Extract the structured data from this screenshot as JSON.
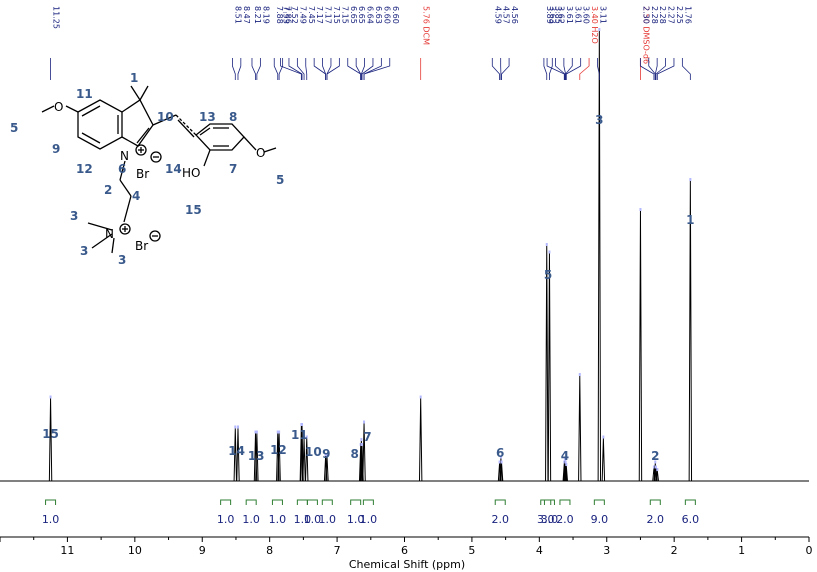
{
  "chart_data": {
    "type": "line",
    "title": "",
    "xlabel": "Chemical Shift (ppm)",
    "ylabel": "",
    "xlim": [
      12,
      0
    ],
    "ylim": [
      0,
      1
    ],
    "x_ticks": [
      "11",
      "10",
      "9",
      "8",
      "7",
      "6",
      "5",
      "4",
      "3",
      "2",
      "1",
      "0"
    ],
    "grid": false,
    "spectrum_peaks": [
      {
        "ppm": 11.25,
        "height": 0.33
      },
      {
        "ppm": 8.51,
        "height": 0.21
      },
      {
        "ppm": 8.47,
        "height": 0.21
      },
      {
        "ppm": 8.21,
        "height": 0.19
      },
      {
        "ppm": 8.19,
        "height": 0.19
      },
      {
        "ppm": 7.88,
        "height": 0.19
      },
      {
        "ppm": 7.86,
        "height": 0.19
      },
      {
        "ppm": 7.53,
        "height": 0.22
      },
      {
        "ppm": 7.52,
        "height": 0.22
      },
      {
        "ppm": 7.49,
        "height": 0.17
      },
      {
        "ppm": 7.45,
        "height": 0.17
      },
      {
        "ppm": 7.17,
        "height": 0.1
      },
      {
        "ppm": 7.15,
        "height": 0.1
      },
      {
        "ppm": 6.65,
        "height": 0.14
      },
      {
        "ppm": 6.64,
        "height": 0.16
      },
      {
        "ppm": 6.63,
        "height": 0.14
      },
      {
        "ppm": 6.6,
        "height": 0.23
      },
      {
        "ppm": 5.76,
        "height": 0.33
      },
      {
        "ppm": 4.59,
        "height": 0.07
      },
      {
        "ppm": 4.57,
        "height": 0.09
      },
      {
        "ppm": 4.56,
        "height": 0.07
      },
      {
        "ppm": 3.89,
        "height": 0.94
      },
      {
        "ppm": 3.85,
        "height": 0.91
      },
      {
        "ppm": 3.63,
        "height": 0.07
      },
      {
        "ppm": 3.62,
        "height": 0.08
      },
      {
        "ppm": 3.61,
        "height": 0.07
      },
      {
        "ppm": 3.6,
        "height": 0.06
      },
      {
        "ppm": 3.4,
        "height": 0.42
      },
      {
        "ppm": 3.11,
        "height": 1.8
      },
      {
        "ppm": 3.05,
        "height": 0.17
      },
      {
        "ppm": 2.5,
        "height": 1.08
      },
      {
        "ppm": 2.3,
        "height": 0.05
      },
      {
        "ppm": 2.28,
        "height": 0.07
      },
      {
        "ppm": 2.27,
        "height": 0.05
      },
      {
        "ppm": 2.25,
        "height": 0.04
      },
      {
        "ppm": 1.76,
        "height": 1.2
      }
    ],
    "peak_labels": [
      {
        "text": "11.25",
        "ppm": 11.25,
        "color": "#1a237e"
      },
      {
        "text": "8.51",
        "ppm": 8.51,
        "color": "#1a237e"
      },
      {
        "text": "8.47",
        "ppm": 8.47,
        "color": "#1a237e"
      },
      {
        "text": "8.21",
        "ppm": 8.21,
        "color": "#1a237e"
      },
      {
        "text": "8.19",
        "ppm": 8.19,
        "color": "#1a237e"
      },
      {
        "text": "7.88",
        "ppm": 7.88,
        "color": "#1a237e"
      },
      {
        "text": "7.86",
        "ppm": 7.86,
        "color": "#1a237e"
      },
      {
        "text": "7.53",
        "ppm": 7.53,
        "color": "#1a237e"
      },
      {
        "text": "7.52",
        "ppm": 7.52,
        "color": "#1a237e"
      },
      {
        "text": "7.49",
        "ppm": 7.49,
        "color": "#1a237e"
      },
      {
        "text": "7.45",
        "ppm": 7.45,
        "color": "#1a237e"
      },
      {
        "text": "7.17",
        "ppm": 7.17,
        "color": "#1a237e"
      },
      {
        "text": "7.17",
        "ppm": 7.17,
        "color": "#1a237e"
      },
      {
        "text": "7.15",
        "ppm": 7.15,
        "color": "#1a237e"
      },
      {
        "text": "7.15",
        "ppm": 7.15,
        "color": "#1a237e"
      },
      {
        "text": "6.65",
        "ppm": 6.65,
        "color": "#1a237e"
      },
      {
        "text": "6.65",
        "ppm": 6.65,
        "color": "#1a237e"
      },
      {
        "text": "6.64",
        "ppm": 6.64,
        "color": "#1a237e"
      },
      {
        "text": "6.63",
        "ppm": 6.63,
        "color": "#1a237e"
      },
      {
        "text": "6.60",
        "ppm": 6.6,
        "color": "#1a237e"
      },
      {
        "text": "6.60",
        "ppm": 6.6,
        "color": "#1a237e"
      },
      {
        "text": "5.76 DCM",
        "ppm": 5.76,
        "color": "#e53935"
      },
      {
        "text": "4.59",
        "ppm": 4.59,
        "color": "#1a237e"
      },
      {
        "text": "4.57",
        "ppm": 4.57,
        "color": "#1a237e"
      },
      {
        "text": "4.56",
        "ppm": 4.56,
        "color": "#1a237e"
      },
      {
        "text": "3.89",
        "ppm": 3.89,
        "color": "#1a237e"
      },
      {
        "text": "3.85",
        "ppm": 3.85,
        "color": "#1a237e"
      },
      {
        "text": "3.63",
        "ppm": 3.63,
        "color": "#1a237e"
      },
      {
        "text": "3.62",
        "ppm": 3.62,
        "color": "#1a237e"
      },
      {
        "text": "3.61",
        "ppm": 3.61,
        "color": "#1a237e"
      },
      {
        "text": "3.61",
        "ppm": 3.61,
        "color": "#1a237e"
      },
      {
        "text": "3.60",
        "ppm": 3.6,
        "color": "#1a237e"
      },
      {
        "text": "3.40 H2O",
        "ppm": 3.4,
        "color": "#e53935"
      },
      {
        "text": "3.11",
        "ppm": 3.11,
        "color": "#1a237e"
      },
      {
        "text": "2.50 DMSO-d6",
        "ppm": 2.5,
        "color": "#e53935"
      },
      {
        "text": "2.30",
        "ppm": 2.3,
        "color": "#1a237e"
      },
      {
        "text": "2.28",
        "ppm": 2.28,
        "color": "#1a237e"
      },
      {
        "text": "2.28",
        "ppm": 2.28,
        "color": "#1a237e"
      },
      {
        "text": "2.27",
        "ppm": 2.27,
        "color": "#1a237e"
      },
      {
        "text": "2.25",
        "ppm": 2.25,
        "color": "#1a237e"
      },
      {
        "text": "1.76",
        "ppm": 1.76,
        "color": "#1a237e"
      }
    ],
    "assignments": [
      {
        "label": "15",
        "ppm": 11.25
      },
      {
        "label": "14",
        "ppm": 8.49
      },
      {
        "label": "13",
        "ppm": 8.2
      },
      {
        "label": "12",
        "ppm": 7.87
      },
      {
        "label": "11",
        "ppm": 7.53
      },
      {
        "label": "10",
        "ppm": 7.47
      },
      {
        "label": "9",
        "ppm": 7.16
      },
      {
        "label": "8",
        "ppm": 6.65
      },
      {
        "label": "7",
        "ppm": 6.61
      },
      {
        "label": "6",
        "ppm": 4.58
      },
      {
        "label": "5",
        "ppm": 3.87
      },
      {
        "label": "4",
        "ppm": 3.62
      },
      {
        "label": "3",
        "ppm": 3.11
      },
      {
        "label": "2",
        "ppm": 2.28
      },
      {
        "label": "1",
        "ppm": 1.76
      }
    ],
    "integrals": [
      {
        "value": "1.0",
        "ppm": 11.25
      },
      {
        "value": "1.0",
        "ppm": 8.49
      },
      {
        "value": "1.0",
        "ppm": 8.2
      },
      {
        "value": "1.0",
        "ppm": 7.87
      },
      {
        "value": "1.0",
        "ppm": 7.53
      },
      {
        "value": "1.0",
        "ppm": 7.47
      },
      {
        "value": "1.0",
        "ppm": 7.16
      },
      {
        "value": "1.0",
        "ppm": 6.65
      },
      {
        "value": "1.0",
        "ppm": 6.61
      },
      {
        "value": "2.0",
        "ppm": 4.58
      },
      {
        "value": "3.0",
        "ppm": 3.89
      },
      {
        "value": "3.0",
        "ppm": 3.85
      },
      {
        "value": "2.0",
        "ppm": 3.62
      },
      {
        "value": "9.0",
        "ppm": 3.11
      },
      {
        "value": "2.0",
        "ppm": 2.28
      },
      {
        "value": "6.0",
        "ppm": 1.76
      }
    ]
  },
  "structure": {
    "numbers": [
      "1",
      "10",
      "13",
      "8",
      "11",
      "5",
      "9",
      "12",
      "6",
      "14",
      "7",
      "5",
      "2",
      "4",
      "15",
      "3",
      "3",
      "3"
    ],
    "atoms": {
      "o_left": "O",
      "n_ring": "N",
      "br1": "Br",
      "o_right": "O",
      "ho": "HO",
      "n_amm": "N",
      "br2": "Br"
    }
  },
  "colors": {
    "spectrum": "#000000",
    "ppm_label": "#1a237e",
    "solvent_label": "#e53935",
    "assignment": "#3a5a8c",
    "integral_curve": "#2e7d32",
    "integral_text": "#1a237e"
  }
}
